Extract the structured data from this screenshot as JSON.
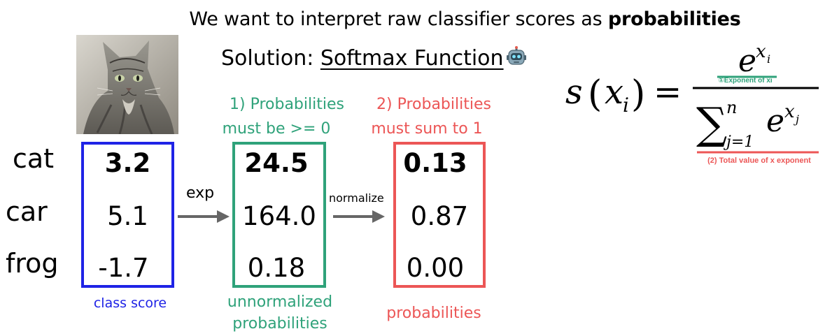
{
  "headline": {
    "prefix": "We want to interpret raw classifier scores as ",
    "bold": "probabilities"
  },
  "solution": {
    "prefix": "Solution: ",
    "link": "Softmax Function"
  },
  "rows": [
    "cat",
    "car",
    "frog"
  ],
  "class_scores": [
    "3.2",
    "5.1",
    "-1.7"
  ],
  "unnormalized": [
    "24.5",
    "164.0",
    "0.18"
  ],
  "probabilities": [
    "0.13",
    "0.87",
    "0.00"
  ],
  "ops": {
    "exp": "exp",
    "normalize": "normalize"
  },
  "notes": {
    "green_line1": "1) Probabilities",
    "green_line2": "must be >= 0",
    "red_line1": "2) Probabilities",
    "red_line2": "must sum to 1"
  },
  "captions": {
    "class_score": "class score",
    "unnorm_line1": "unnormalized",
    "unnorm_line2": "probabilities",
    "probs": "probabilities"
  },
  "formula": {
    "numerator_note": "①Exponent of xi",
    "denominator_note": "(2) Total value of x exponent"
  },
  "colors": {
    "blue": "#1f23e6",
    "green": "#2fa27a",
    "red": "#ec5656",
    "arrow": "#666666"
  },
  "icons": [
    "cat-photo",
    "robot-icon"
  ]
}
